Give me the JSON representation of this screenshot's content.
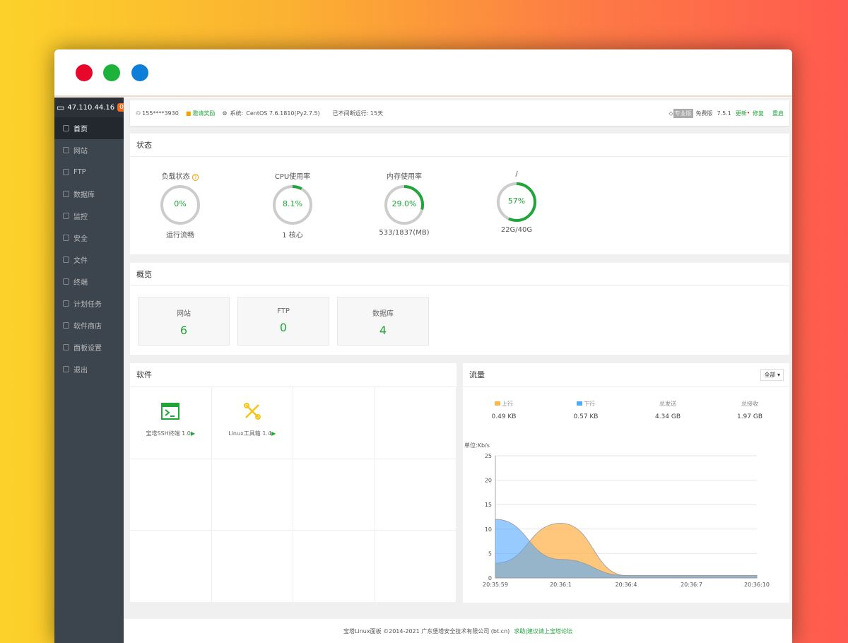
{
  "window": {
    "dots": [
      "#e8072b",
      "#1db33b",
      "#0d7fd9"
    ]
  },
  "sidebar": {
    "ip": "47.110.44.16",
    "badge": "0",
    "items": [
      {
        "label": "首页",
        "icon": "home-icon"
      },
      {
        "label": "网站",
        "icon": "globe-icon"
      },
      {
        "label": "FTP",
        "icon": "ftp-icon"
      },
      {
        "label": "数据库",
        "icon": "database-icon"
      },
      {
        "label": "监控",
        "icon": "monitor-icon"
      },
      {
        "label": "安全",
        "icon": "shield-icon"
      },
      {
        "label": "文件",
        "icon": "folder-icon"
      },
      {
        "label": "终端",
        "icon": "terminal-icon"
      },
      {
        "label": "计划任务",
        "icon": "clock-icon"
      },
      {
        "label": "软件商店",
        "icon": "store-icon"
      },
      {
        "label": "面板设置",
        "icon": "gear-icon"
      },
      {
        "label": "退出",
        "icon": "logout-icon"
      }
    ]
  },
  "topbar": {
    "user": "155****3930",
    "invite": "邀请奖励",
    "system_label": "系统:",
    "system": "CentOS 7.6.1810(Py2.7.5)",
    "uptime": "已不间断运行: 15天",
    "pro": "专业版",
    "free": "免费版",
    "version": "7.5.1",
    "update": "更新",
    "repair": "修复",
    "restart": "重启"
  },
  "status": {
    "title": "状态",
    "gauges": [
      {
        "label": "负载状态",
        "value": "0%",
        "percent": 0,
        "sub": "运行流畅"
      },
      {
        "label": "CPU使用率",
        "value": "8.1%",
        "percent": 8.1,
        "sub": "1 核心"
      },
      {
        "label": "内存使用率",
        "value": "29.0%",
        "percent": 29.0,
        "sub": "533/1837(MB)"
      },
      {
        "label": "/",
        "value": "57%",
        "percent": 57,
        "sub": "22G/40G"
      }
    ]
  },
  "overview": {
    "title": "概览",
    "items": [
      {
        "label": "网站",
        "value": "6"
      },
      {
        "label": "FTP",
        "value": "0"
      },
      {
        "label": "数据库",
        "value": "4"
      }
    ]
  },
  "software": {
    "title": "软件",
    "items": [
      {
        "name": "宝塔SSH终端 1.0"
      },
      {
        "name": "Linux工具箱 1.4"
      }
    ]
  },
  "traffic": {
    "title": "流量",
    "select": "全部",
    "stats": [
      {
        "label": "上行",
        "value": "0.49 KB",
        "color": "#f7b851"
      },
      {
        "label": "下行",
        "value": "0.57 KB",
        "color": "#52a9ff"
      },
      {
        "label": "总发送",
        "value": "4.34 GB"
      },
      {
        "label": "总接收",
        "value": "1.97 GB"
      }
    ]
  },
  "chart_data": {
    "type": "area",
    "ylabel": "单位:Kb/s",
    "x": [
      "20:35:59",
      "20:36:1",
      "20:36:4",
      "20:36:7",
      "20:36:10"
    ],
    "ylim": [
      0,
      25
    ],
    "yticks": [
      0,
      5,
      10,
      15,
      20,
      25
    ],
    "grid": true,
    "series": [
      {
        "name": "上行",
        "color": "#f7b851",
        "values": [
          3,
          11.2,
          0.5,
          0.5,
          0.5
        ]
      },
      {
        "name": "下行",
        "color": "#52a9ff",
        "values": [
          12,
          3.8,
          0.5,
          0.5,
          0.5
        ]
      }
    ]
  },
  "footer": {
    "copyright": "宝塔Linux面板 ©2014-2021 广东堡塔安全技术有限公司 (bt.cn)",
    "link": "求助|建议请上宝塔论坛"
  }
}
